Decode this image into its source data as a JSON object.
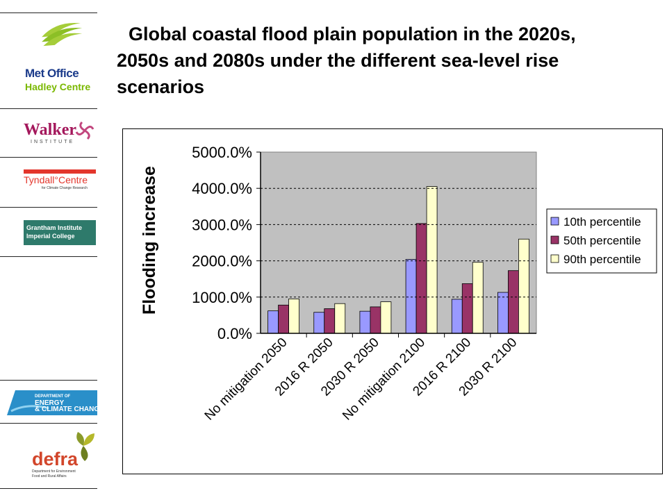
{
  "title": {
    "line1": "Global coastal flood plain population in the 2020s,",
    "line2": "2050s and 2080s under the different sea-level rise",
    "line3": "scenarios"
  },
  "sidebar": {
    "met_office": {
      "line1": "Met Office",
      "line2": "Hadley Centre"
    },
    "walker": {
      "name": "Walker",
      "sub": "INSTITUTE"
    },
    "tyndall": {
      "name": "Tyndall°Centre",
      "sub": "for Climate Change Research"
    },
    "grantham": {
      "line1": "Grantham Institute",
      "line2": "Imperial College"
    },
    "decc": {
      "line1": "DEPARTMENT OF",
      "line2": "ENERGY",
      "line3": "& CLIMATE CHANGE"
    },
    "defra": {
      "name": "defra",
      "sub1": "Department for Environment",
      "sub2": "Food and Rural Affairs"
    }
  },
  "colors": {
    "p10": "#9999ff",
    "p50": "#993366",
    "p90": "#ffffcc",
    "plot_bg": "#c0c0c0"
  },
  "chart_data": {
    "type": "bar",
    "title": "",
    "xlabel": "",
    "ylabel": "Flooding increase",
    "ylim": [
      0,
      5000
    ],
    "yticks": [
      "0.0%",
      "1000.0%",
      "2000.0%",
      "3000.0%",
      "4000.0%",
      "5000.0%"
    ],
    "grid": true,
    "legend_position": "right",
    "categories": [
      "No mitigation 2050",
      "2016 R 2050",
      "2030 R 2050",
      "No mitigation 2100",
      "2016 R 2100",
      "2030 R 2100"
    ],
    "series": [
      {
        "name": "10th percentile",
        "values": [
          620,
          580,
          610,
          2040,
          940,
          1130
        ]
      },
      {
        "name": "50th percentile",
        "values": [
          780,
          680,
          730,
          3030,
          1370,
          1730
        ]
      },
      {
        "name": "90th percentile",
        "values": [
          950,
          820,
          870,
          4050,
          1960,
          2600
        ]
      }
    ]
  }
}
